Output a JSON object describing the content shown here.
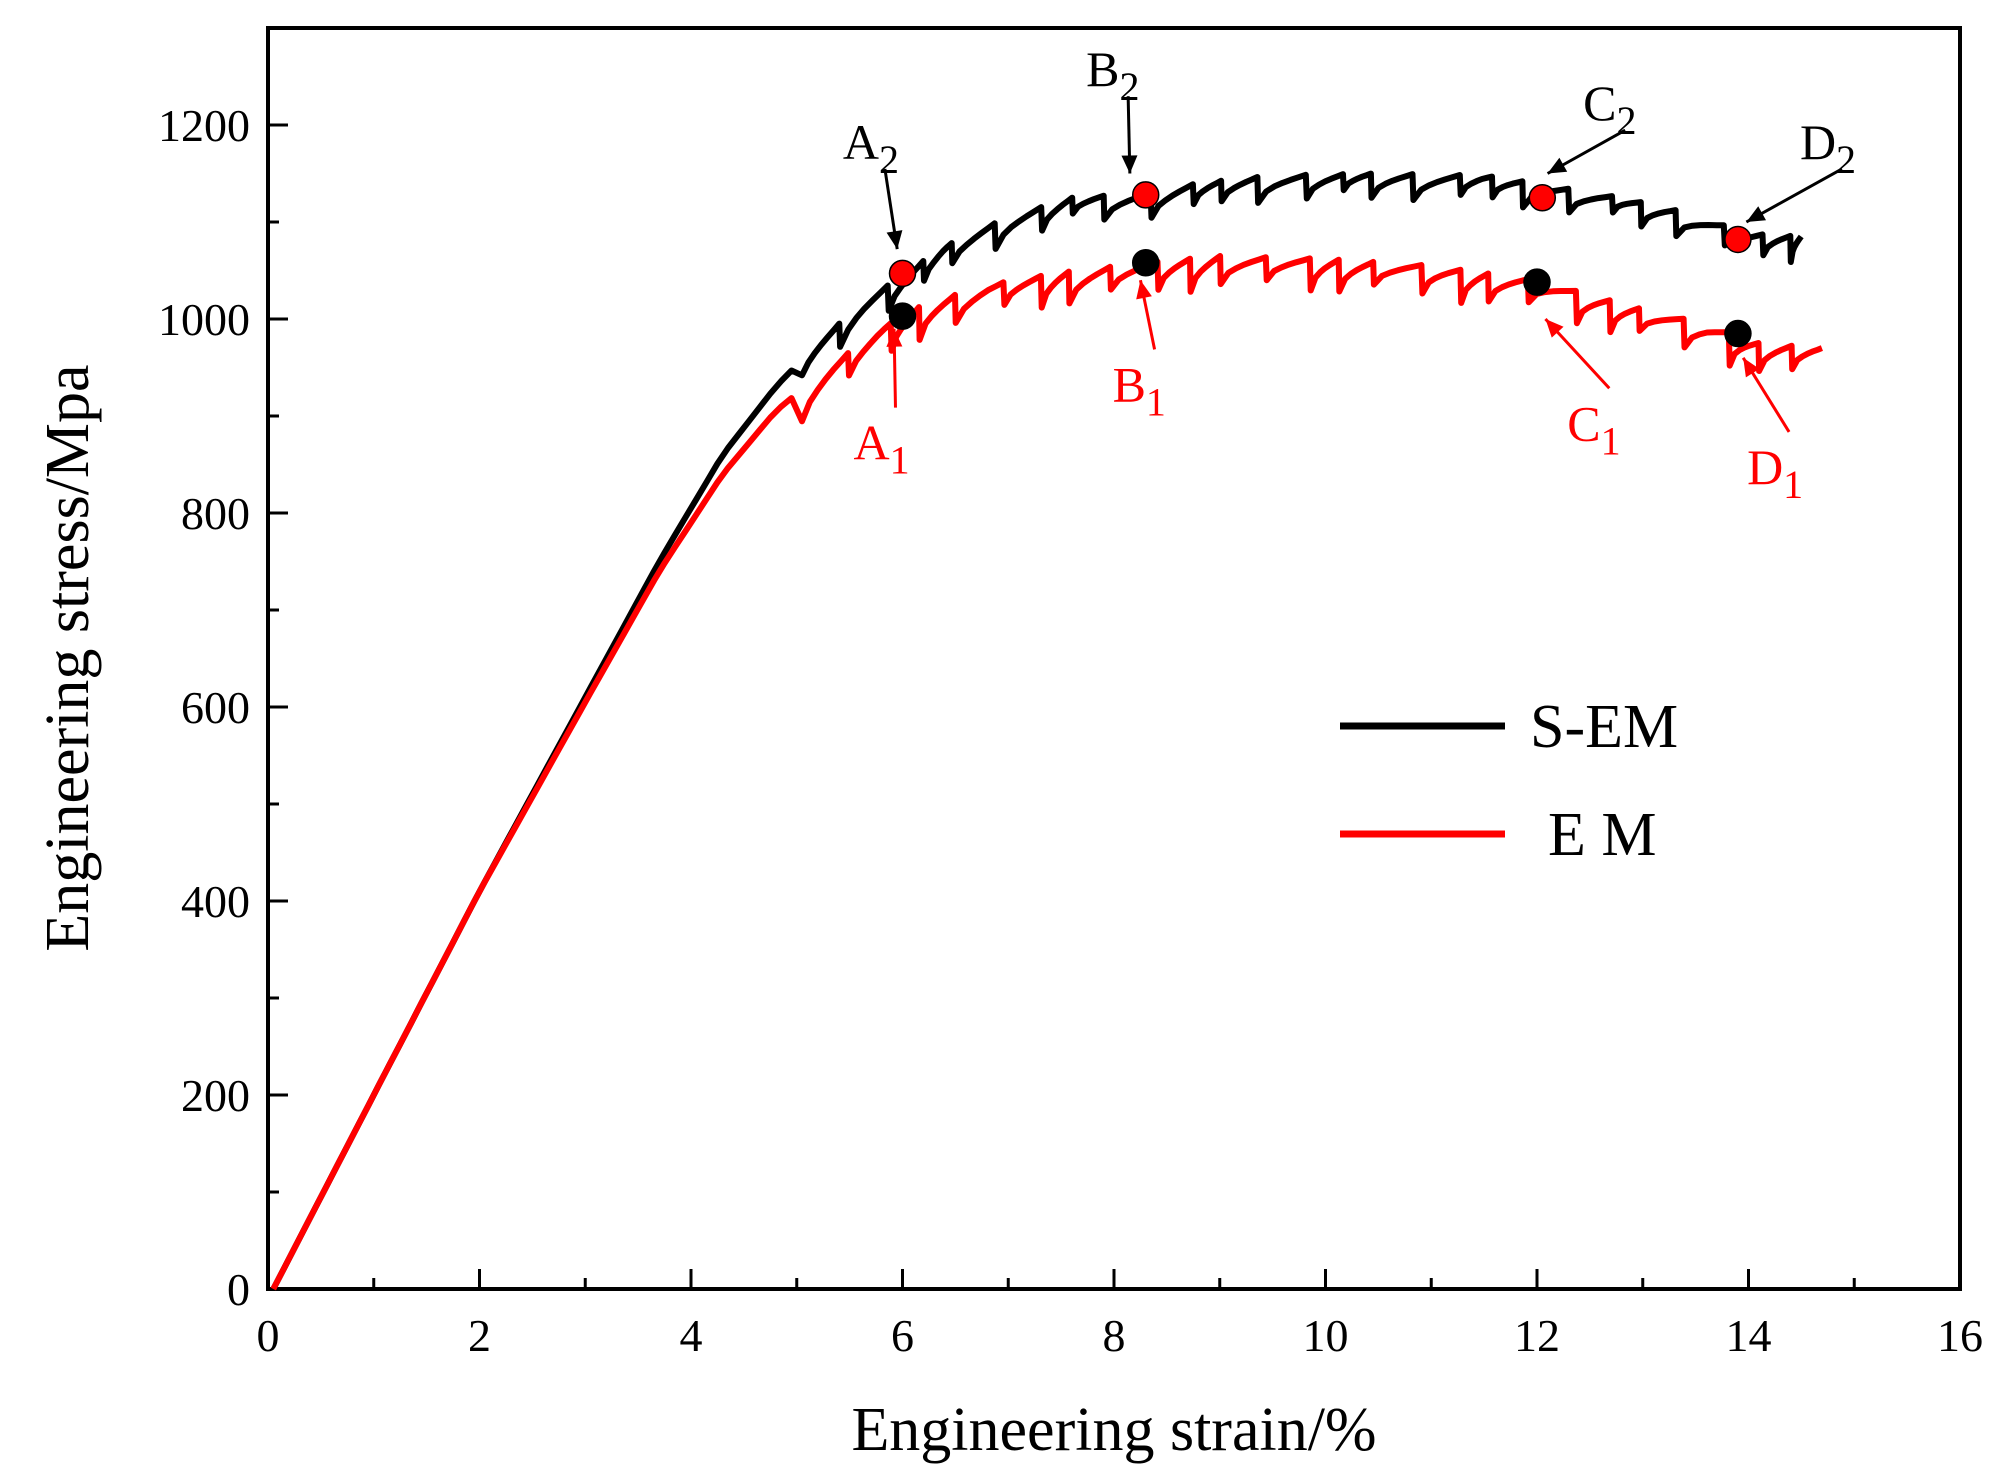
{
  "chart_data": {
    "type": "line",
    "title": "",
    "xlabel": "Engineering strain/%",
    "ylabel": "Engineering stress/Mpa",
    "xlim": [
      0,
      16
    ],
    "ylim": [
      0,
      1300
    ],
    "xticks": [
      0,
      2,
      4,
      6,
      8,
      10,
      12,
      14,
      16
    ],
    "yticks": [
      0,
      200,
      400,
      600,
      800,
      1000,
      1200
    ],
    "xtick_labels": [
      "0",
      "2",
      "4",
      "6",
      "8",
      "10",
      "12",
      "14",
      "16"
    ],
    "ytick_labels": [
      "0",
      "200",
      "400",
      "600",
      "800",
      "1000",
      "1200"
    ],
    "grid": false,
    "legend_position": "center-right",
    "colors": {
      "S-EM": "#000000",
      "E M": "#ff0000"
    },
    "series": [
      {
        "name": "S-EM",
        "color": "#000000",
        "envelope": [
          [
            0.05,
            0
          ],
          [
            1,
            200
          ],
          [
            2,
            410
          ],
          [
            3,
            610
          ],
          [
            3.7,
            750
          ],
          [
            4.3,
            860
          ],
          [
            4.8,
            930
          ],
          [
            5.2,
            975
          ],
          [
            5.6,
            1015
          ],
          [
            6.0,
            1045
          ],
          [
            6.4,
            1075
          ],
          [
            7.0,
            1105
          ],
          [
            7.6,
            1125
          ],
          [
            8.3,
            1130
          ],
          [
            8.8,
            1140
          ],
          [
            9.5,
            1148
          ],
          [
            10.5,
            1150
          ],
          [
            11.5,
            1148
          ],
          [
            12.1,
            1138
          ],
          [
            12.8,
            1125
          ],
          [
            13.4,
            1110
          ],
          [
            14.0,
            1088
          ],
          [
            14.5,
            1085
          ]
        ],
        "serration_start": 5.0,
        "serration_amplitude": 30
      },
      {
        "name": "E M",
        "color": "#ff0000",
        "envelope": [
          [
            0.05,
            0
          ],
          [
            1,
            200
          ],
          [
            2,
            410
          ],
          [
            3,
            605
          ],
          [
            3.7,
            740
          ],
          [
            4.3,
            840
          ],
          [
            4.8,
            905
          ],
          [
            5.3,
            950
          ],
          [
            5.8,
            990
          ],
          [
            6.2,
            1015
          ],
          [
            6.8,
            1035
          ],
          [
            7.5,
            1048
          ],
          [
            8.3,
            1058
          ],
          [
            9.0,
            1065
          ],
          [
            10.0,
            1062
          ],
          [
            11.0,
            1055
          ],
          [
            12.0,
            1040
          ],
          [
            12.5,
            1025
          ],
          [
            13.0,
            1010
          ],
          [
            13.6,
            995
          ],
          [
            14.1,
            975
          ],
          [
            14.7,
            970
          ]
        ],
        "serration_start": 5.0,
        "serration_amplitude": 38
      }
    ],
    "markers": [
      {
        "label": "A",
        "sub": "2",
        "x": 6.0,
        "y": 1047,
        "fill": "#ff0000",
        "text_color": "#000000",
        "text_pos": [
          5.55,
          1165
        ],
        "arrow_to": [
          5.95,
          1072
        ]
      },
      {
        "label": "B",
        "sub": "2",
        "x": 8.3,
        "y": 1128,
        "fill": "#ff0000",
        "text_color": "#000000",
        "text_pos": [
          7.85,
          1240
        ],
        "arrow_to": [
          8.15,
          1150
        ]
      },
      {
        "label": "C",
        "sub": "2",
        "x": 12.05,
        "y": 1125,
        "fill": "#ff0000",
        "text_color": "#000000",
        "text_pos": [
          12.55,
          1205
        ],
        "arrow_to": [
          12.1,
          1150
        ]
      },
      {
        "label": "D",
        "sub": "2",
        "x": 13.9,
        "y": 1082,
        "fill": "#ff0000",
        "text_color": "#000000",
        "text_pos": [
          14.6,
          1165
        ],
        "arrow_to": [
          13.98,
          1100
        ]
      },
      {
        "label": "A",
        "sub": "1",
        "x": 6.0,
        "y": 1003,
        "fill": "#000000",
        "text_color": "#ff0000",
        "text_pos": [
          5.65,
          855
        ],
        "arrow_to": [
          5.92,
          990
        ]
      },
      {
        "label": "B",
        "sub": "1",
        "x": 8.3,
        "y": 1058,
        "fill": "#000000",
        "text_color": "#ff0000",
        "text_pos": [
          8.1,
          915
        ],
        "arrow_to": [
          8.25,
          1040
        ]
      },
      {
        "label": "C",
        "sub": "1",
        "x": 12.0,
        "y": 1038,
        "fill": "#000000",
        "text_color": "#ff0000",
        "text_pos": [
          12.4,
          875
        ],
        "arrow_to": [
          12.08,
          1000
        ]
      },
      {
        "label": "D",
        "sub": "1",
        "x": 13.9,
        "y": 985,
        "fill": "#000000",
        "text_color": "#ff0000",
        "text_pos": [
          14.1,
          830
        ],
        "arrow_to": [
          13.95,
          960
        ]
      }
    ]
  }
}
